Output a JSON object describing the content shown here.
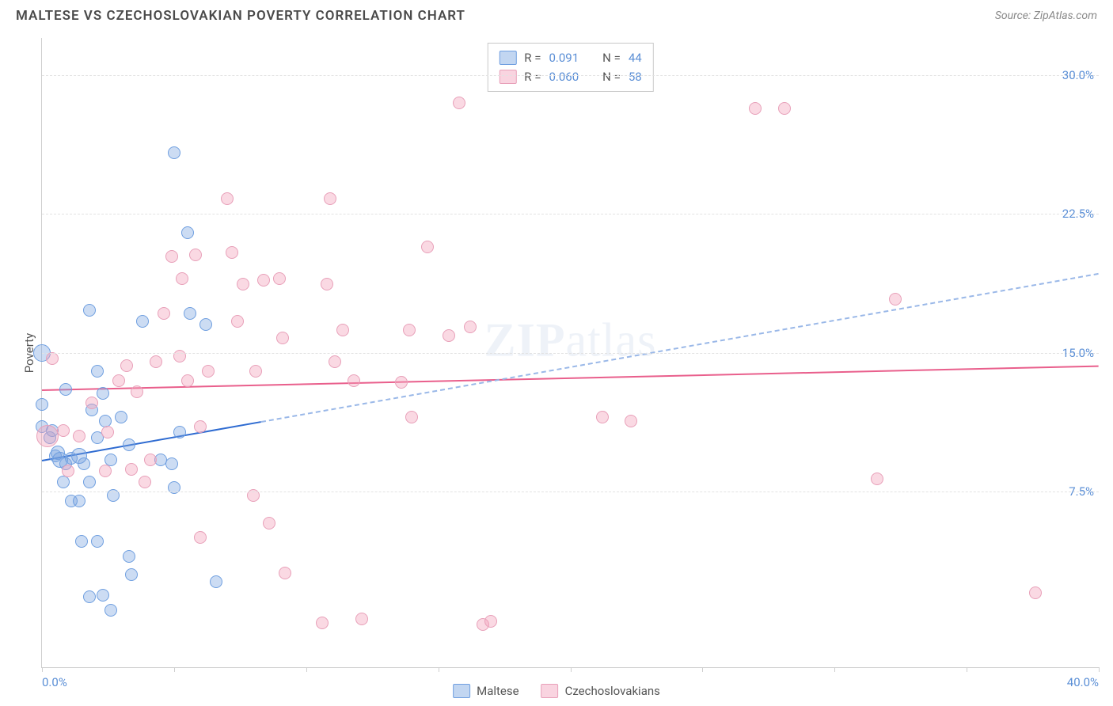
{
  "header": {
    "title": "MALTESE VS CZECHOSLOVAKIAN POVERTY CORRELATION CHART",
    "source_label": "Source: ZipAtlas.com"
  },
  "chart": {
    "type": "scatter",
    "ylabel": "Poverty",
    "xlim": [
      0,
      40
    ],
    "ylim": [
      -2,
      32
    ],
    "y_ticks": [
      7.5,
      15.0,
      22.5,
      30.0
    ],
    "y_tick_labels": [
      "7.5%",
      "15.0%",
      "22.5%",
      "30.0%"
    ],
    "x_ticks": [
      0,
      5,
      10,
      15,
      20,
      25,
      30,
      35,
      40
    ],
    "x_tick_left_label": "0.0%",
    "x_tick_right_label": "40.0%",
    "background_color": "#ffffff",
    "grid_color": "#e2e2e2",
    "axis_color": "#cfcfcf",
    "tick_label_color": "#5b8fd6",
    "watermark": "ZIPatlas",
    "series": [
      {
        "name": "Maltese",
        "fill": "rgba(120,163,224,0.38)",
        "stroke": "#6f9fe0",
        "marker_radius": 8,
        "R": "0.091",
        "N": "44",
        "trend": {
          "x1": 0,
          "y1": 9.2,
          "x2": 40,
          "y2": 19.3,
          "solid_until_x": 8.3
        },
        "points": [
          {
            "x": 0.0,
            "y": 15.0,
            "r": 11
          },
          {
            "x": 0.0,
            "y": 12.2,
            "r": 8
          },
          {
            "x": 0.0,
            "y": 11.0,
            "r": 8
          },
          {
            "x": 0.3,
            "y": 10.4,
            "r": 8
          },
          {
            "x": 0.4,
            "y": 10.8,
            "r": 8
          },
          {
            "x": 0.5,
            "y": 9.4,
            "r": 8
          },
          {
            "x": 0.6,
            "y": 9.6,
            "r": 9
          },
          {
            "x": 0.7,
            "y": 9.2,
            "r": 10
          },
          {
            "x": 0.9,
            "y": 9.0,
            "r": 8
          },
          {
            "x": 1.1,
            "y": 9.3,
            "r": 8
          },
          {
            "x": 0.8,
            "y": 8.0,
            "r": 8
          },
          {
            "x": 1.1,
            "y": 7.0,
            "r": 8
          },
          {
            "x": 1.4,
            "y": 7.0,
            "r": 8
          },
          {
            "x": 1.4,
            "y": 9.4,
            "r": 10
          },
          {
            "x": 1.6,
            "y": 9.0,
            "r": 8
          },
          {
            "x": 1.9,
            "y": 11.9,
            "r": 8
          },
          {
            "x": 2.3,
            "y": 12.8,
            "r": 8
          },
          {
            "x": 2.4,
            "y": 11.3,
            "r": 8
          },
          {
            "x": 2.6,
            "y": 9.2,
            "r": 8
          },
          {
            "x": 2.1,
            "y": 10.4,
            "r": 8
          },
          {
            "x": 1.8,
            "y": 8.0,
            "r": 8
          },
          {
            "x": 1.5,
            "y": 4.8,
            "r": 8
          },
          {
            "x": 2.1,
            "y": 4.8,
            "r": 8
          },
          {
            "x": 1.8,
            "y": 1.8,
            "r": 8
          },
          {
            "x": 2.3,
            "y": 1.9,
            "r": 8
          },
          {
            "x": 2.6,
            "y": 1.1,
            "r": 8
          },
          {
            "x": 3.3,
            "y": 4.0,
            "r": 8
          },
          {
            "x": 3.4,
            "y": 3.0,
            "r": 8
          },
          {
            "x": 2.7,
            "y": 7.3,
            "r": 8
          },
          {
            "x": 3.0,
            "y": 11.5,
            "r": 8
          },
          {
            "x": 3.3,
            "y": 10.0,
            "r": 8
          },
          {
            "x": 3.8,
            "y": 16.7,
            "r": 8
          },
          {
            "x": 4.5,
            "y": 9.2,
            "r": 8
          },
          {
            "x": 4.9,
            "y": 9.0,
            "r": 8
          },
          {
            "x": 5.0,
            "y": 7.7,
            "r": 8
          },
          {
            "x": 5.2,
            "y": 10.7,
            "r": 8
          },
          {
            "x": 5.5,
            "y": 21.5,
            "r": 8
          },
          {
            "x": 5.6,
            "y": 17.1,
            "r": 8
          },
          {
            "x": 5.0,
            "y": 25.8,
            "r": 8
          },
          {
            "x": 6.2,
            "y": 16.5,
            "r": 8
          },
          {
            "x": 6.6,
            "y": 2.6,
            "r": 8
          },
          {
            "x": 1.8,
            "y": 17.3,
            "r": 8
          },
          {
            "x": 0.9,
            "y": 13.0,
            "r": 8
          },
          {
            "x": 2.1,
            "y": 14.0,
            "r": 8
          }
        ]
      },
      {
        "name": "Czechoslovakians",
        "fill": "rgba(242,160,186,0.40)",
        "stroke": "#e8a0b9",
        "marker_radius": 8,
        "R": "0.060",
        "N": "58",
        "trend": {
          "x1": 0,
          "y1": 13.0,
          "x2": 40,
          "y2": 14.3
        },
        "points": [
          {
            "x": 0.2,
            "y": 10.5,
            "r": 14
          },
          {
            "x": 0.4,
            "y": 14.7,
            "r": 8
          },
          {
            "x": 0.8,
            "y": 10.8,
            "r": 8
          },
          {
            "x": 1.4,
            "y": 10.5,
            "r": 8
          },
          {
            "x": 1.9,
            "y": 12.3,
            "r": 8
          },
          {
            "x": 2.5,
            "y": 10.7,
            "r": 8
          },
          {
            "x": 2.9,
            "y": 13.5,
            "r": 8
          },
          {
            "x": 3.2,
            "y": 14.3,
            "r": 8
          },
          {
            "x": 3.6,
            "y": 12.9,
            "r": 8
          },
          {
            "x": 3.4,
            "y": 8.7,
            "r": 8
          },
          {
            "x": 3.9,
            "y": 8.0,
            "r": 8
          },
          {
            "x": 4.1,
            "y": 9.2,
            "r": 8
          },
          {
            "x": 4.3,
            "y": 14.5,
            "r": 8
          },
          {
            "x": 4.6,
            "y": 17.1,
            "r": 8
          },
          {
            "x": 5.2,
            "y": 14.8,
            "r": 8
          },
          {
            "x": 5.3,
            "y": 19.0,
            "r": 8
          },
          {
            "x": 5.5,
            "y": 13.5,
            "r": 8
          },
          {
            "x": 5.8,
            "y": 20.3,
            "r": 8
          },
          {
            "x": 6.0,
            "y": 11.0,
            "r": 8
          },
          {
            "x": 6.3,
            "y": 14.0,
            "r": 8
          },
          {
            "x": 6.0,
            "y": 5.0,
            "r": 8
          },
          {
            "x": 7.0,
            "y": 23.3,
            "r": 8
          },
          {
            "x": 7.2,
            "y": 20.4,
            "r": 8
          },
          {
            "x": 7.4,
            "y": 16.7,
            "r": 8
          },
          {
            "x": 7.6,
            "y": 18.7,
            "r": 8
          },
          {
            "x": 8.1,
            "y": 14.0,
            "r": 8
          },
          {
            "x": 8.4,
            "y": 18.9,
            "r": 8
          },
          {
            "x": 8.6,
            "y": 5.8,
            "r": 8
          },
          {
            "x": 9.0,
            "y": 19.0,
            "r": 8
          },
          {
            "x": 9.1,
            "y": 15.8,
            "r": 8
          },
          {
            "x": 9.2,
            "y": 3.1,
            "r": 8
          },
          {
            "x": 10.6,
            "y": 0.4,
            "r": 8
          },
          {
            "x": 10.8,
            "y": 18.7,
            "r": 8
          },
          {
            "x": 10.9,
            "y": 23.3,
            "r": 8
          },
          {
            "x": 11.1,
            "y": 14.5,
            "r": 8
          },
          {
            "x": 11.4,
            "y": 16.2,
            "r": 8
          },
          {
            "x": 11.8,
            "y": 13.5,
            "r": 8
          },
          {
            "x": 12.1,
            "y": 0.6,
            "r": 8
          },
          {
            "x": 13.6,
            "y": 13.4,
            "r": 8
          },
          {
            "x": 14.0,
            "y": 11.5,
            "r": 8
          },
          {
            "x": 14.6,
            "y": 20.7,
            "r": 8
          },
          {
            "x": 15.4,
            "y": 15.9,
            "r": 8
          },
          {
            "x": 15.8,
            "y": 28.5,
            "r": 8
          },
          {
            "x": 16.2,
            "y": 16.4,
            "r": 8
          },
          {
            "x": 16.7,
            "y": 0.3,
            "r": 8
          },
          {
            "x": 17.0,
            "y": 0.5,
            "r": 8
          },
          {
            "x": 13.9,
            "y": 16.2,
            "r": 8
          },
          {
            "x": 22.3,
            "y": 11.3,
            "r": 8
          },
          {
            "x": 27.0,
            "y": 28.2,
            "r": 8
          },
          {
            "x": 28.1,
            "y": 28.2,
            "r": 8
          },
          {
            "x": 31.6,
            "y": 8.2,
            "r": 8
          },
          {
            "x": 32.3,
            "y": 17.9,
            "r": 8
          },
          {
            "x": 37.6,
            "y": 2.0,
            "r": 8
          },
          {
            "x": 4.9,
            "y": 20.2,
            "r": 8
          },
          {
            "x": 2.4,
            "y": 8.6,
            "r": 8
          },
          {
            "x": 1.0,
            "y": 8.6,
            "r": 8
          },
          {
            "x": 21.2,
            "y": 11.5,
            "r": 8
          },
          {
            "x": 8.0,
            "y": 7.3,
            "r": 8
          }
        ]
      }
    ],
    "legend_top": {
      "rows": [
        {
          "swatch_fill": "rgba(120,163,224,0.45)",
          "swatch_border": "#6f9fe0",
          "R_lbl": "R = ",
          "R": "0.091",
          "N_lbl": "N = ",
          "N": "44"
        },
        {
          "swatch_fill": "rgba(242,160,186,0.45)",
          "swatch_border": "#e8a0b9",
          "R_lbl": "R = ",
          "R": "0.060",
          "N_lbl": "N = ",
          "N": "58"
        }
      ]
    },
    "legend_bottom": [
      {
        "swatch_fill": "rgba(120,163,224,0.45)",
        "swatch_border": "#6f9fe0",
        "label": "Maltese"
      },
      {
        "swatch_fill": "rgba(242,160,186,0.45)",
        "swatch_border": "#e8a0b9",
        "label": "Czechoslovakians"
      }
    ]
  }
}
